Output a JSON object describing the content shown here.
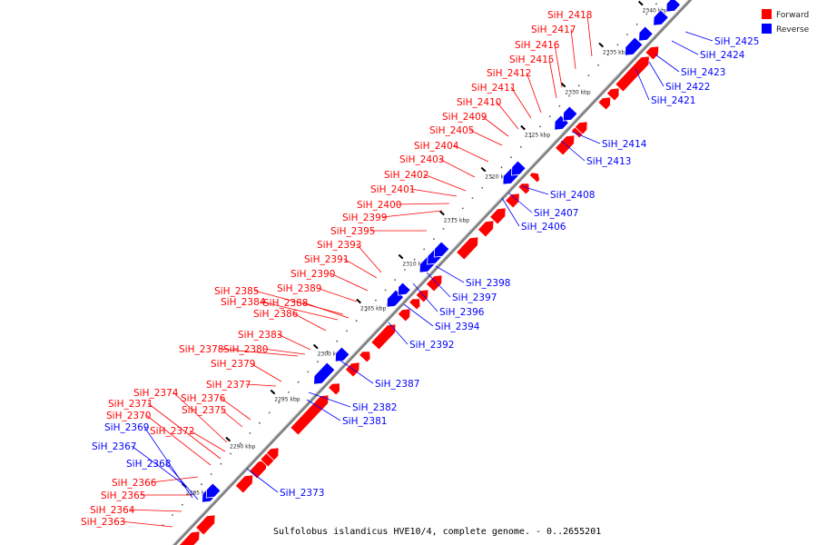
{
  "legend": {
    "forward": {
      "label": "Forward",
      "color": "#ff0000"
    },
    "reverse": {
      "label": "Reverse",
      "color": "#0000ff"
    }
  },
  "caption": "Sulfolobus islandicus HVE10/4, complete genome. - 0..2655201",
  "colors": {
    "forward": "#ff0000",
    "reverse": "#0000ff",
    "backbone": "#808080"
  },
  "scale_labels": [
    "2285 kbp",
    "2290 kbp",
    "2295 kbp",
    "2300 kbp",
    "2305 kbp",
    "2310 kbp",
    "2315 kbp",
    "2320 kbp",
    "2325 kbp",
    "2330 kbp",
    "2335 kbp",
    "2340 kbp"
  ],
  "forward_genes": [
    "SiH_2418",
    "SiH_2417",
    "SiH_2416",
    "SiH_2415",
    "SiH_2412",
    "SiH_2411",
    "SiH_2410",
    "SiH_2409",
    "SiH_2405",
    "SiH_2404",
    "SiH_2403",
    "SiH_2402",
    "SiH_2401",
    "SiH_2400",
    "SiH_2399",
    "SiH_2395",
    "SiH_2393",
    "SiH_2391",
    "SiH_2390",
    "SiH_2389",
    "SiH_2385",
    "SiH_2384",
    "SiH_2388",
    "SiH_2386",
    "SiH_2383",
    "SiH_2378",
    "SiH_2380",
    "SiH_2379",
    "SiH_2377",
    "SiH_2374",
    "SiH_2376",
    "SiH_2371",
    "SiH_2375",
    "SiH_2370",
    "SiH_2372",
    "SiH_2366",
    "SiH_2365",
    "SiH_2364",
    "SiH_2363"
  ],
  "reverse_genes": [
    "SiH_2425",
    "SiH_2424",
    "SiH_2423",
    "SiH_2422",
    "SiH_2421",
    "SiH_2414",
    "SiH_2413",
    "SiH_2408",
    "SiH_2407",
    "SiH_2406",
    "SiH_2398",
    "SiH_2397",
    "SiH_2396",
    "SiH_2394",
    "SiH_2392",
    "SiH_2387",
    "SiH_2382",
    "SiH_2381",
    "SiH_2369",
    "SiH_2367",
    "SiH_2368",
    "SiH_2373"
  ]
}
